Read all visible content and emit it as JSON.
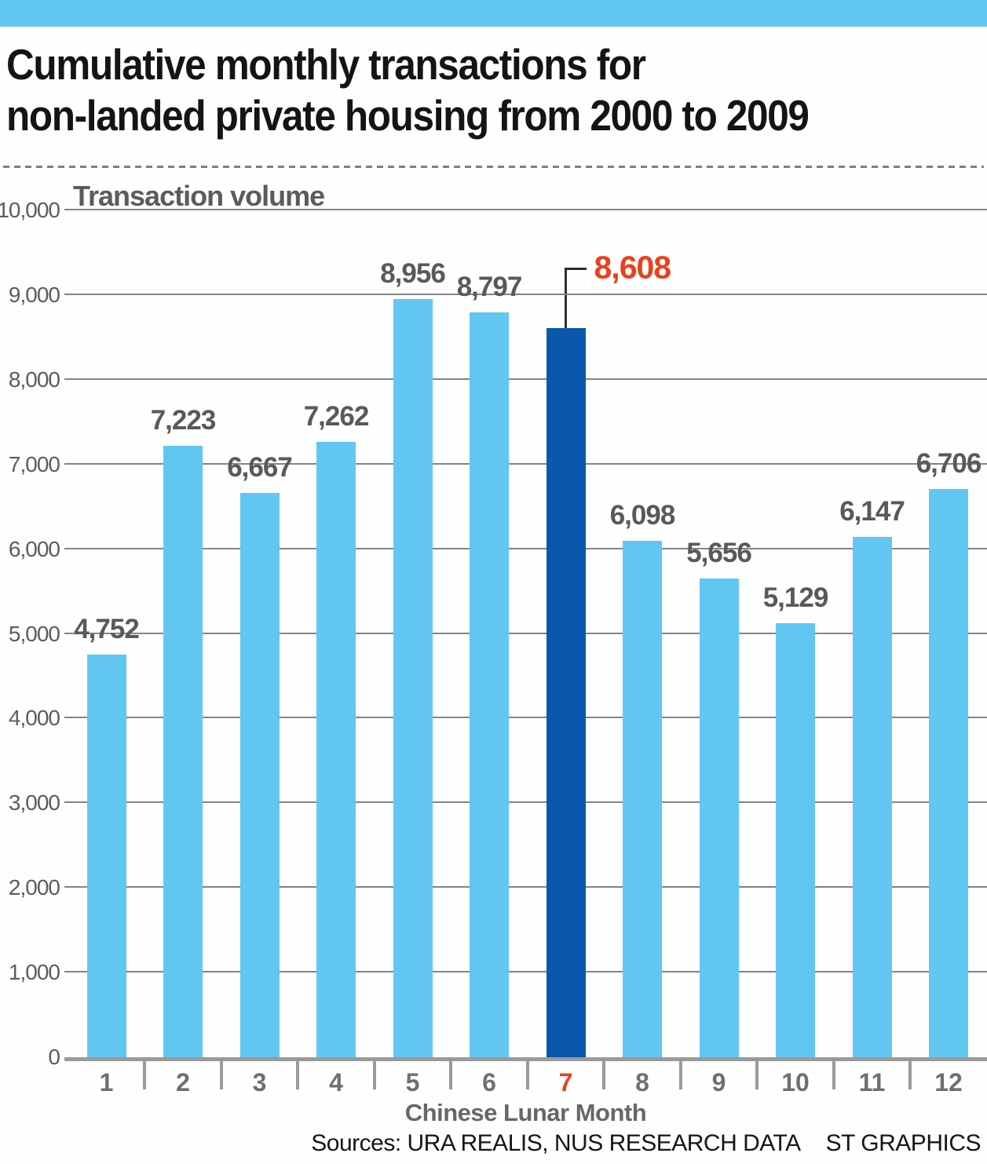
{
  "header": {
    "title_line1": "Cumulative monthly transactions for",
    "title_line2": "non-landed private housing from 2000 to 2009"
  },
  "chart_data": {
    "type": "bar",
    "title": "Cumulative monthly transactions for non-landed private housing from 2000 to 2009",
    "ylabel": "Transaction volume",
    "xlabel": "Chinese Lunar Month",
    "categories": [
      "1",
      "2",
      "3",
      "4",
      "5",
      "6",
      "7",
      "8",
      "9",
      "10",
      "11",
      "12"
    ],
    "values": [
      4752,
      7223,
      6667,
      7262,
      8956,
      8797,
      8608,
      6098,
      5656,
      5129,
      6147,
      6706
    ],
    "value_labels": [
      "4,752",
      "7,223",
      "6,667",
      "7,262",
      "8,956",
      "8,797",
      "8,608",
      "6,098",
      "5,656",
      "5,129",
      "6,147",
      "6,706"
    ],
    "ylim": [
      0,
      10000
    ],
    "ytick_values": [
      0,
      1000,
      2000,
      3000,
      4000,
      5000,
      6000,
      7000,
      8000,
      9000,
      10000
    ],
    "ytick_labels": [
      "0",
      "1,000",
      "2,000",
      "3,000",
      "4,000",
      "5,000",
      "6,000",
      "7,000",
      "8,000",
      "9,000",
      "10,000"
    ],
    "grid": true,
    "legend": "none",
    "highlight_index": 6,
    "highlight_label": "8,608",
    "bar_color": "#61C6F2",
    "highlight_bar_color": "#0A57AD",
    "highlight_text_color": "#EE3E1B",
    "accent_banner_color": "#61C6F2"
  },
  "footer": {
    "sources": "Sources: URA REALIS, NUS RESEARCH DATA",
    "credit": "ST GRAPHICS"
  }
}
